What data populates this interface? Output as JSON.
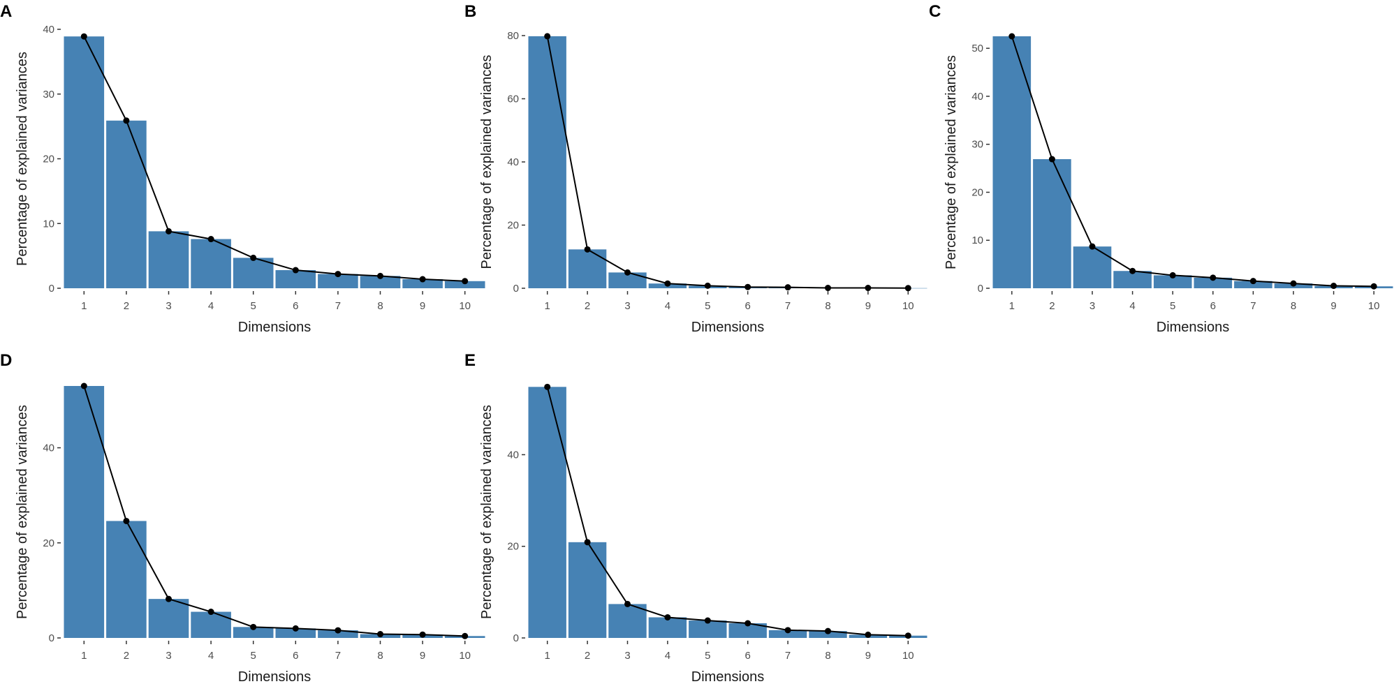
{
  "figure": {
    "background": "#ffffff",
    "bar_color": "#4682b4",
    "line_color": "#000000"
  },
  "chart_data": [
    {
      "panel": "A",
      "type": "bar",
      "title": "",
      "xlabel": "Dimensions",
      "ylabel": "Percentage of explained variances",
      "categories": [
        "1",
        "2",
        "3",
        "4",
        "5",
        "6",
        "7",
        "8",
        "9",
        "10"
      ],
      "values": [
        38.9,
        25.9,
        8.8,
        7.6,
        4.7,
        2.8,
        2.2,
        1.9,
        1.4,
        1.1
      ],
      "ylim": [
        0,
        40
      ],
      "yticks": [
        0,
        10,
        20,
        30,
        40
      ],
      "grid": false
    },
    {
      "panel": "B",
      "type": "bar",
      "title": "",
      "xlabel": "Dimensions",
      "ylabel": "Percentage of explained variances",
      "categories": [
        "1",
        "2",
        "3",
        "4",
        "5",
        "6",
        "7",
        "8",
        "9",
        "10"
      ],
      "values": [
        79.8,
        12.3,
        5.0,
        1.5,
        0.8,
        0.4,
        0.3,
        0.1,
        0.1,
        0.05
      ],
      "ylim": [
        0,
        80
      ],
      "yticks": [
        0,
        20,
        40,
        60,
        80
      ],
      "grid": false
    },
    {
      "panel": "C",
      "type": "bar",
      "title": "",
      "xlabel": "Dimensions",
      "ylabel": "Percentage of explained variances",
      "categories": [
        "1",
        "2",
        "3",
        "4",
        "5",
        "6",
        "7",
        "8",
        "9",
        "10"
      ],
      "values": [
        52.5,
        26.9,
        8.7,
        3.6,
        2.7,
        2.2,
        1.5,
        1.0,
        0.5,
        0.4
      ],
      "ylim": [
        0,
        52.5
      ],
      "yticks": [
        0,
        10,
        20,
        30,
        40,
        50
      ],
      "grid": false
    },
    {
      "panel": "D",
      "type": "bar",
      "title": "",
      "xlabel": "Dimensions",
      "ylabel": "Percentage of explained variances",
      "categories": [
        "1",
        "2",
        "3",
        "4",
        "5",
        "6",
        "7",
        "8",
        "9",
        "10"
      ],
      "values": [
        53.0,
        24.6,
        8.2,
        5.5,
        2.3,
        2.0,
        1.6,
        0.8,
        0.7,
        0.4
      ],
      "ylim": [
        0,
        53
      ],
      "yticks": [
        0,
        20,
        40
      ],
      "grid": false
    },
    {
      "panel": "E",
      "type": "bar",
      "title": "",
      "xlabel": "Dimensions",
      "ylabel": "Percentage of explained variances",
      "categories": [
        "1",
        "2",
        "3",
        "4",
        "5",
        "6",
        "7",
        "8",
        "9",
        "10"
      ],
      "values": [
        54.8,
        20.9,
        7.4,
        4.5,
        3.8,
        3.2,
        1.7,
        1.5,
        0.7,
        0.5
      ],
      "ylim": [
        0,
        55
      ],
      "yticks": [
        0,
        20,
        40
      ],
      "grid": false
    }
  ]
}
